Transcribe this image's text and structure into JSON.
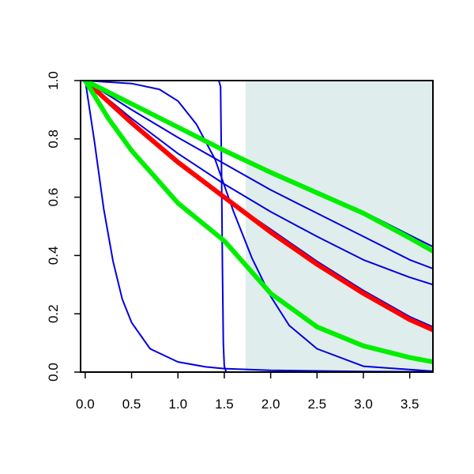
{
  "chart_data": {
    "type": "line",
    "title": "",
    "xlabel": "",
    "ylabel": "",
    "xlim": [
      -0.05,
      3.75
    ],
    "ylim": [
      0.0,
      1.0
    ],
    "x_ticks": [
      "0.0",
      "0.5",
      "1.0",
      "1.5",
      "2.0",
      "2.5",
      "3.0",
      "3.5"
    ],
    "y_ticks": [
      "0.0",
      "0.2",
      "0.4",
      "0.6",
      "0.8",
      "1.0"
    ],
    "shaded_region": {
      "x": [
        1.73,
        3.75
      ],
      "color": "#e0eded"
    },
    "grid": false,
    "legend": "none",
    "series": [
      {
        "color": "#0000dd",
        "width": "thin",
        "x": [
          0,
          0.1,
          0.2,
          0.3,
          0.4,
          0.5,
          0.7,
          1.0,
          1.3,
          1.5,
          2.0,
          3.0,
          3.75
        ],
        "y": [
          1.0,
          0.79,
          0.56,
          0.38,
          0.25,
          0.17,
          0.08,
          0.035,
          0.018,
          0.012,
          0.006,
          0.002,
          0.001
        ]
      },
      {
        "color": "#0000dd",
        "width": "thin",
        "x": [
          0,
          1.44,
          1.46,
          1.47,
          1.48,
          1.49,
          1.5,
          1.52,
          3.75
        ],
        "y": [
          1.0,
          1.0,
          0.98,
          0.7,
          0.35,
          0.1,
          0.02,
          0.0,
          0.0
        ]
      },
      {
        "color": "#0000dd",
        "width": "thin",
        "x": [
          0,
          0.5,
          0.8,
          1.0,
          1.2,
          1.4,
          1.6,
          1.8,
          2.0,
          2.2,
          2.5,
          3.0,
          3.75
        ],
        "y": [
          1.0,
          0.99,
          0.97,
          0.93,
          0.85,
          0.73,
          0.55,
          0.39,
          0.26,
          0.16,
          0.08,
          0.02,
          0.003
        ]
      },
      {
        "color": "#0000dd",
        "width": "thin",
        "x": [
          0,
          0.5,
          1.0,
          1.5,
          2.0,
          2.5,
          3.0,
          3.5,
          3.75
        ],
        "y": [
          1.0,
          0.87,
          0.75,
          0.645,
          0.55,
          0.465,
          0.385,
          0.325,
          0.3
        ]
      },
      {
        "color": "#0000dd",
        "width": "thin",
        "x": [
          0,
          0.5,
          1.0,
          1.5,
          2.0,
          2.5,
          3.0,
          3.5,
          3.75
        ],
        "y": [
          1.0,
          0.9,
          0.805,
          0.715,
          0.625,
          0.545,
          0.465,
          0.385,
          0.355
        ]
      },
      {
        "color": "#0000dd",
        "width": "thin",
        "x": [
          0,
          0.5,
          1.0,
          1.5,
          2.0,
          2.5,
          3.0,
          3.5,
          3.75
        ],
        "y": [
          1.0,
          0.92,
          0.84,
          0.765,
          0.69,
          0.62,
          0.55,
          0.47,
          0.43
        ]
      },
      {
        "color": "#0000dd",
        "width": "thin",
        "x": [
          0,
          0.5,
          1.0,
          1.5,
          2.0,
          2.5,
          3.0,
          3.5,
          3.75
        ],
        "y": [
          1.0,
          0.86,
          0.72,
          0.6,
          0.49,
          0.38,
          0.28,
          0.19,
          0.155
        ]
      },
      {
        "color": "#ff0000",
        "width": "thick",
        "x": [
          0,
          0.5,
          1.0,
          1.5,
          2.0,
          2.5,
          3.0,
          3.5,
          3.75
        ],
        "y": [
          1.0,
          0.855,
          0.72,
          0.6,
          0.48,
          0.37,
          0.27,
          0.18,
          0.145
        ]
      },
      {
        "color": "#00ee00",
        "width": "thick",
        "x": [
          0,
          0.5,
          1.0,
          1.5,
          2.0,
          2.5,
          3.0,
          3.5,
          3.75
        ],
        "y": [
          1.0,
          0.92,
          0.84,
          0.76,
          0.685,
          0.615,
          0.545,
          0.46,
          0.415
        ]
      },
      {
        "color": "#00ee00",
        "width": "thick",
        "x": [
          0,
          0.25,
          0.5,
          1.0,
          1.5,
          2.0,
          2.5,
          3.0,
          3.5,
          3.75
        ],
        "y": [
          1.0,
          0.87,
          0.76,
          0.58,
          0.45,
          0.27,
          0.155,
          0.09,
          0.05,
          0.035
        ]
      }
    ]
  }
}
